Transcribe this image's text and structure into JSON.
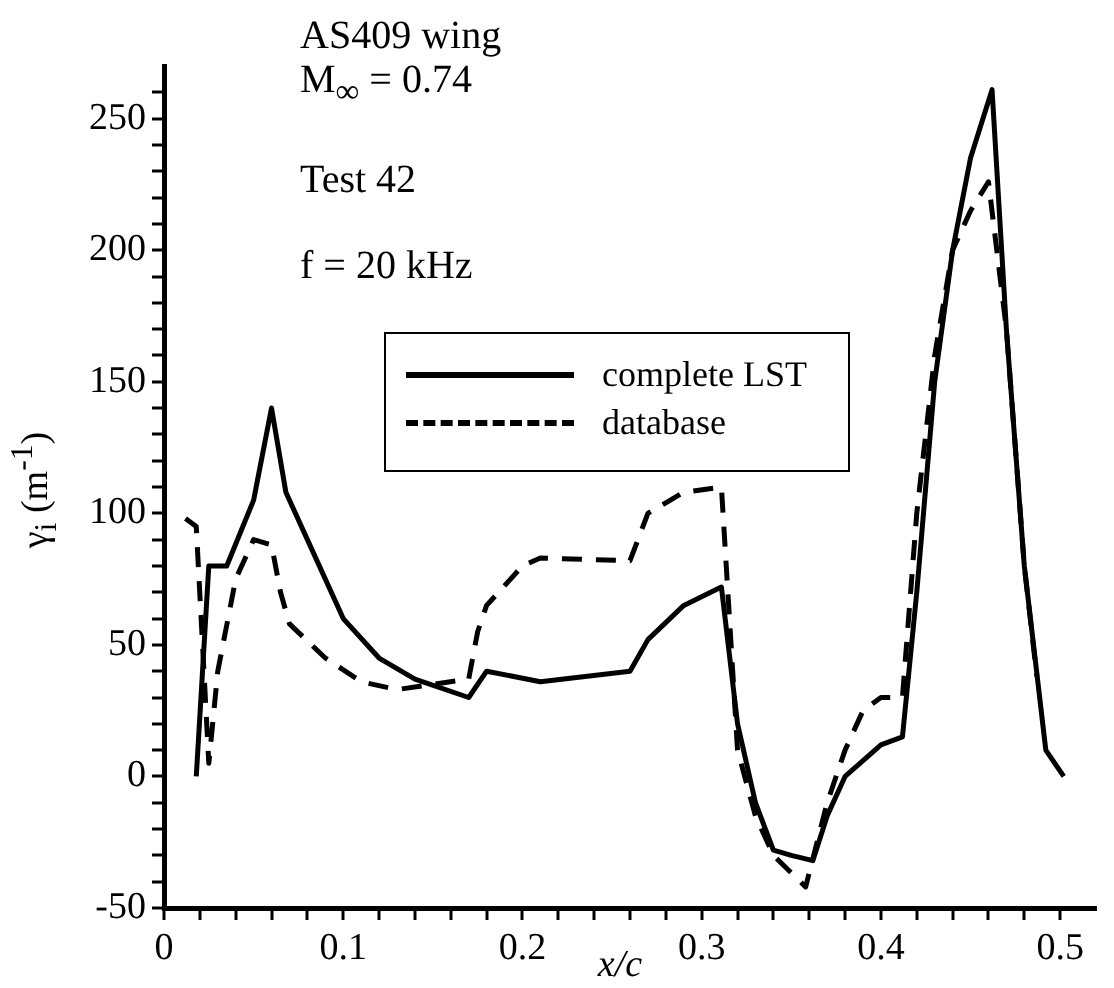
{
  "chart_data": {
    "type": "line",
    "xlabel": "x/c",
    "ylabel": "γ$_{i}$ (m$^{-1}$)",
    "annotations": [
      "AS409 wing",
      "M$_{∞}$ = 0.74",
      "Test 42",
      "f = 20 kHz"
    ],
    "xlim": [
      0,
      0.52
    ],
    "ylim": [
      -50,
      270
    ],
    "xticks": [
      0,
      {
        "value": 0.02,
        "label": null
      },
      {
        "value": 0.04,
        "label": null
      },
      {
        "value": 0.06,
        "label": null
      },
      {
        "value": 0.08,
        "label": null
      },
      0.1,
      {
        "value": 0.12,
        "label": null
      },
      {
        "value": 0.14,
        "label": null
      },
      {
        "value": 0.16,
        "label": null
      },
      {
        "value": 0.18,
        "label": null
      },
      0.2,
      {
        "value": 0.22,
        "label": null
      },
      {
        "value": 0.24,
        "label": null
      },
      {
        "value": 0.26,
        "label": null
      },
      {
        "value": 0.28,
        "label": null
      },
      0.3,
      {
        "value": 0.32,
        "label": null
      },
      {
        "value": 0.34,
        "label": null
      },
      {
        "value": 0.36,
        "label": null
      },
      {
        "value": 0.38,
        "label": null
      },
      0.4,
      {
        "value": 0.42,
        "label": null
      },
      {
        "value": 0.44,
        "label": null
      },
      {
        "value": 0.46,
        "label": null
      },
      {
        "value": 0.48,
        "label": null
      },
      0.5
    ],
    "yticks": [
      -50,
      {
        "value": -40,
        "label": null
      },
      {
        "value": -30,
        "label": null
      },
      {
        "value": -20,
        "label": null
      },
      {
        "value": -10,
        "label": null
      },
      0,
      {
        "value": 10,
        "label": null
      },
      {
        "value": 20,
        "label": null
      },
      {
        "value": 30,
        "label": null
      },
      {
        "value": 40,
        "label": null
      },
      50,
      {
        "value": 60,
        "label": null
      },
      {
        "value": 70,
        "label": null
      },
      {
        "value": 80,
        "label": null
      },
      {
        "value": 90,
        "label": null
      },
      100,
      {
        "value": 110,
        "label": null
      },
      {
        "value": 120,
        "label": null
      },
      {
        "value": 130,
        "label": null
      },
      {
        "value": 140,
        "label": null
      },
      150,
      {
        "value": 160,
        "label": null
      },
      {
        "value": 170,
        "label": null
      },
      {
        "value": 180,
        "label": null
      },
      {
        "value": 190,
        "label": null
      },
      200,
      {
        "value": 210,
        "label": null
      },
      {
        "value": 220,
        "label": null
      },
      {
        "value": 230,
        "label": null
      },
      {
        "value": 240,
        "label": null
      },
      250,
      {
        "value": 260,
        "label": null
      }
    ],
    "grid": false,
    "legend": "top",
    "marker": "none",
    "series": [
      {
        "name": "complete LST",
        "color": "#000000",
        "line_style": "solid",
        "x": [
          0.018,
          0.025,
          0.035,
          0.05,
          0.06,
          0.068,
          0.08,
          0.1,
          0.12,
          0.14,
          0.17,
          0.18,
          0.21,
          0.26,
          0.27,
          0.29,
          0.311,
          0.32,
          0.33,
          0.34,
          0.35,
          0.362,
          0.37,
          0.38,
          0.4,
          0.412,
          0.42,
          0.43,
          0.44,
          0.45,
          0.462,
          0.47,
          0.48,
          0.492,
          0.502
        ],
        "values": [
          0,
          80,
          80,
          105,
          140,
          108,
          90,
          60,
          45,
          37,
          30,
          40,
          36,
          40,
          52,
          65,
          72,
          20,
          -10,
          -28,
          -30,
          -32,
          -15,
          0,
          12,
          15,
          70,
          150,
          200,
          235,
          261,
          170,
          80,
          10,
          0
        ]
      },
      {
        "name": "database",
        "color": "#000000",
        "line_style": "dashed",
        "x": [
          0.012,
          0.018,
          0.025,
          0.03,
          0.04,
          0.05,
          0.06,
          0.065,
          0.07,
          0.09,
          0.11,
          0.13,
          0.15,
          0.17,
          0.175,
          0.18,
          0.2,
          0.21,
          0.26,
          0.27,
          0.29,
          0.311,
          0.32,
          0.33,
          0.34,
          0.358,
          0.37,
          0.38,
          0.39,
          0.4,
          0.412,
          0.42,
          0.43,
          0.44,
          0.45,
          0.46,
          0.47,
          0.48,
          0.487
        ],
        "values": [
          98,
          95,
          5,
          40,
          75,
          90,
          88,
          70,
          58,
          45,
          36,
          33,
          35,
          37,
          55,
          65,
          80,
          83,
          82,
          100,
          108,
          110,
          10,
          -15,
          -30,
          -42,
          -10,
          10,
          25,
          30,
          30,
          100,
          160,
          200,
          215,
          226,
          170,
          80,
          38
        ]
      }
    ]
  }
}
